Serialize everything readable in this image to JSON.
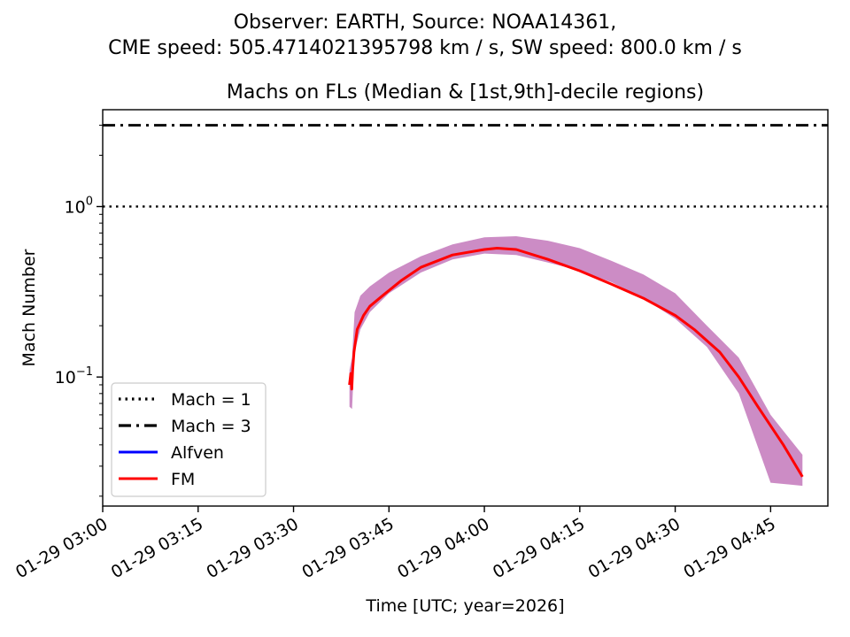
{
  "chart_data": {
    "type": "line",
    "suptitle": [
      "Observer: EARTH, Source: NOAA14361,",
      "CME speed: 505.4714021395798 km / s, SW speed: 800.0 km / s"
    ],
    "title": "Machs on FLs (Median & [1st,9th]-decile regions)",
    "xlabel": "Time [UTC; year=2026]",
    "ylabel": "Mach Number",
    "yscale": "log",
    "ylim": [
      0.0175,
      3.7
    ],
    "xlim_minutes": [
      0,
      114
    ],
    "x_unit": "minutes after 01-29 03:00 UTC",
    "x_ticks": [
      {
        "minute": 0,
        "label": "01-29 03:00"
      },
      {
        "minute": 15,
        "label": "01-29 03:15"
      },
      {
        "minute": 30,
        "label": "01-29 03:30"
      },
      {
        "minute": 45,
        "label": "01-29 03:45"
      },
      {
        "minute": 60,
        "label": "01-29 04:00"
      },
      {
        "minute": 75,
        "label": "01-29 04:15"
      },
      {
        "minute": 90,
        "label": "01-29 04:30"
      },
      {
        "minute": 105,
        "label": "01-29 04:45"
      }
    ],
    "y_ticks": [
      {
        "value": 1,
        "base": "10",
        "exp": "0"
      },
      {
        "value": 0.1,
        "base": "10",
        "exp": "−1"
      }
    ],
    "reference_lines": [
      {
        "name": "Mach = 1",
        "value": 1,
        "style": "dotted",
        "color": "#000000"
      },
      {
        "name": "Mach = 3",
        "value": 3,
        "style": "dashdot",
        "color": "#000000"
      }
    ],
    "legend": [
      {
        "label": "Mach = 1",
        "style": "dotted",
        "color": "#000000"
      },
      {
        "label": "Mach = 3",
        "style": "dashdot",
        "color": "#000000"
      },
      {
        "label": "Alfven",
        "style": "solid",
        "color": "#0000ff"
      },
      {
        "label": "FM",
        "style": "solid",
        "color": "#ff0000"
      }
    ],
    "legend_position": "lower-left",
    "band": {
      "name": "FM [1st,9th]-decile region",
      "color": "#c77fbf",
      "x": [
        38.8,
        39.2,
        39.6,
        40.5,
        42,
        45,
        50,
        55,
        60,
        65,
        70,
        75,
        80,
        85,
        90,
        95,
        100,
        105,
        110
      ],
      "lower": [
        0.067,
        0.065,
        0.14,
        0.19,
        0.24,
        0.31,
        0.41,
        0.49,
        0.53,
        0.52,
        0.47,
        0.42,
        0.36,
        0.29,
        0.22,
        0.15,
        0.08,
        0.024,
        0.023
      ],
      "upper": [
        0.11,
        0.13,
        0.24,
        0.3,
        0.34,
        0.41,
        0.51,
        0.6,
        0.66,
        0.67,
        0.63,
        0.57,
        0.48,
        0.4,
        0.31,
        0.2,
        0.13,
        0.06,
        0.035
      ]
    },
    "series": [
      {
        "name": "FM",
        "color": "#ff0000",
        "x": [
          38.8,
          39,
          39.15,
          39.3,
          39.5,
          40,
          41,
          42,
          44,
          47,
          50,
          55,
          60,
          62,
          65,
          70,
          75,
          80,
          85,
          90,
          93,
          97,
          100,
          103,
          107,
          110
        ],
        "y": [
          0.09,
          0.105,
          0.085,
          0.11,
          0.14,
          0.19,
          0.23,
          0.26,
          0.3,
          0.37,
          0.44,
          0.52,
          0.56,
          0.57,
          0.56,
          0.49,
          0.42,
          0.35,
          0.29,
          0.23,
          0.19,
          0.14,
          0.1,
          0.067,
          0.04,
          0.026
        ]
      },
      {
        "name": "Alfven",
        "color": "#0000ff",
        "x": [],
        "y": []
      }
    ]
  }
}
